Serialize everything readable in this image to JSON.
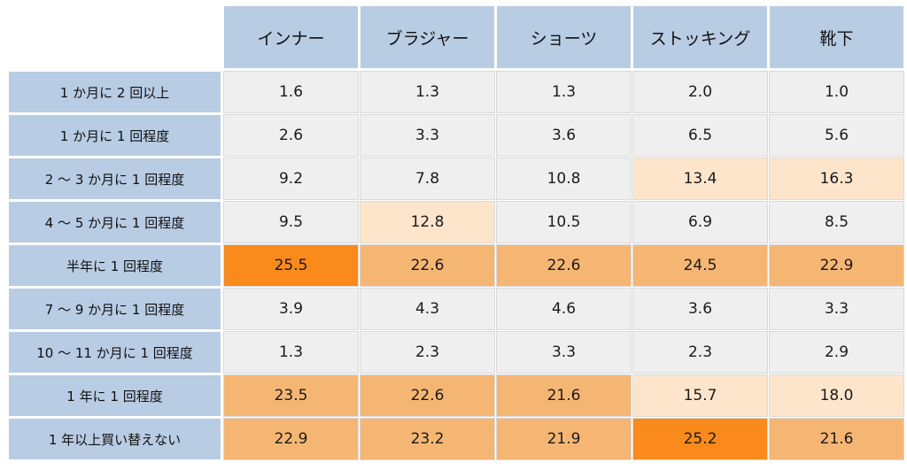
{
  "chart_data": {
    "type": "heatmap",
    "title": "",
    "xlabel": "",
    "ylabel": "",
    "columns": [
      "インナー",
      "ブラジャー",
      "ショーツ",
      "ストッキング",
      "靴下"
    ],
    "rows": [
      "1 か月に 2 回以上",
      "1 か月に 1 回程度",
      "2 〜 3 か月に 1 回程度",
      "4 〜 5 か月に 1 回程度",
      "半年に 1 回程度",
      "7 〜 9 か月に 1 回程度",
      "10 〜 11 か月に 1 回程度",
      "1 年に 1 回程度",
      "1 年以上買い替えない"
    ],
    "values": [
      [
        "1.6",
        "1.3",
        "1.3",
        "2.0",
        "1.0"
      ],
      [
        "2.6",
        "3.3",
        "3.6",
        "6.5",
        "5.6"
      ],
      [
        "9.2",
        "7.8",
        "10.8",
        "13.4",
        "16.3"
      ],
      [
        "9.5",
        "12.8",
        "10.5",
        "6.9",
        "8.5"
      ],
      [
        "25.5",
        "22.6",
        "22.6",
        "24.5",
        "22.9"
      ],
      [
        "3.9",
        "4.3",
        "4.6",
        "3.6",
        "3.3"
      ],
      [
        "1.3",
        "2.3",
        "3.3",
        "2.3",
        "2.9"
      ],
      [
        "23.5",
        "22.6",
        "21.6",
        "15.7",
        "18.0"
      ],
      [
        "22.9",
        "23.2",
        "21.9",
        "25.2",
        "21.6"
      ]
    ],
    "highlight_levels": [
      [
        0,
        0,
        0,
        0,
        0
      ],
      [
        0,
        0,
        0,
        0,
        0
      ],
      [
        0,
        0,
        0,
        1,
        1
      ],
      [
        0,
        1,
        0,
        0,
        0
      ],
      [
        3,
        2,
        2,
        2,
        2
      ],
      [
        0,
        0,
        0,
        0,
        0
      ],
      [
        0,
        0,
        0,
        0,
        0
      ],
      [
        2,
        2,
        2,
        1,
        1
      ],
      [
        2,
        2,
        2,
        3,
        2
      ]
    ],
    "colors": {
      "header": "#b8cce4",
      "neutral": "#efefef",
      "light": "#fde5cc",
      "medium": "#f6b673",
      "strong": "#fb8a1c"
    }
  }
}
